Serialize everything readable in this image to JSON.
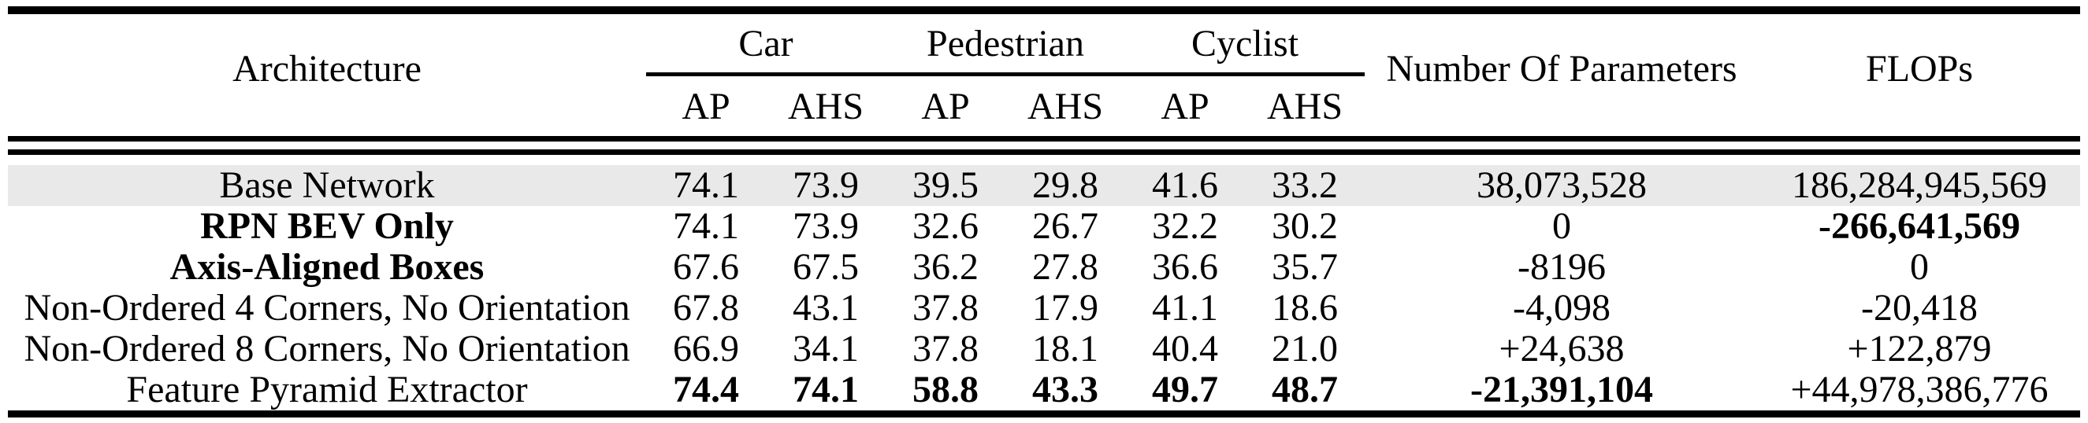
{
  "table": {
    "header": {
      "architecture": "Architecture",
      "groups": [
        {
          "label": "Car",
          "sub": [
            "AP",
            "AHS"
          ]
        },
        {
          "label": "Pedestrian",
          "sub": [
            "AP",
            "AHS"
          ]
        },
        {
          "label": "Cyclist",
          "sub": [
            "AP",
            "AHS"
          ]
        }
      ],
      "params": "Number Of Parameters",
      "flops": "FLOPs"
    },
    "rows": [
      {
        "label": {
          "text": "Base Network",
          "bold": false
        },
        "highlight": true,
        "metrics": [
          {
            "text": "74.1",
            "bold": false
          },
          {
            "text": "73.9",
            "bold": false
          },
          {
            "text": "39.5",
            "bold": false
          },
          {
            "text": "29.8",
            "bold": false
          },
          {
            "text": "41.6",
            "bold": false
          },
          {
            "text": "33.2",
            "bold": false
          }
        ],
        "params": {
          "text": "38,073,528",
          "bold": false
        },
        "flops": {
          "text": "186,284,945,569",
          "bold": false
        }
      },
      {
        "label": {
          "text": "RPN BEV Only",
          "bold": true
        },
        "highlight": false,
        "metrics": [
          {
            "text": "74.1",
            "bold": false
          },
          {
            "text": "73.9",
            "bold": false
          },
          {
            "text": "32.6",
            "bold": false
          },
          {
            "text": "26.7",
            "bold": false
          },
          {
            "text": "32.2",
            "bold": false
          },
          {
            "text": "30.2",
            "bold": false
          }
        ],
        "params": {
          "text": "0",
          "bold": false
        },
        "flops": {
          "text": "-266,641,569",
          "bold": true
        }
      },
      {
        "label": {
          "text": "Axis-Aligned Boxes",
          "bold": true
        },
        "highlight": false,
        "metrics": [
          {
            "text": "67.6",
            "bold": false
          },
          {
            "text": "67.5",
            "bold": false
          },
          {
            "text": "36.2",
            "bold": false
          },
          {
            "text": "27.8",
            "bold": false
          },
          {
            "text": "36.6",
            "bold": false
          },
          {
            "text": "35.7",
            "bold": false
          }
        ],
        "params": {
          "text": "-8196",
          "bold": false
        },
        "flops": {
          "text": "0",
          "bold": false
        }
      },
      {
        "label": {
          "text": "Non-Ordered 4 Corners, No Orientation",
          "bold": false
        },
        "highlight": false,
        "metrics": [
          {
            "text": "67.8",
            "bold": false
          },
          {
            "text": "43.1",
            "bold": false
          },
          {
            "text": "37.8",
            "bold": false
          },
          {
            "text": "17.9",
            "bold": false
          },
          {
            "text": "41.1",
            "bold": false
          },
          {
            "text": "18.6",
            "bold": false
          }
        ],
        "params": {
          "text": "-4,098",
          "bold": false
        },
        "flops": {
          "text": "-20,418",
          "bold": false
        }
      },
      {
        "label": {
          "text": "Non-Ordered 8 Corners, No Orientation",
          "bold": false
        },
        "highlight": false,
        "metrics": [
          {
            "text": "66.9",
            "bold": false
          },
          {
            "text": "34.1",
            "bold": false
          },
          {
            "text": "37.8",
            "bold": false
          },
          {
            "text": "18.1",
            "bold": false
          },
          {
            "text": "40.4",
            "bold": false
          },
          {
            "text": "21.0",
            "bold": false
          }
        ],
        "params": {
          "text": "+24,638",
          "bold": false
        },
        "flops": {
          "text": "+122,879",
          "bold": false
        }
      },
      {
        "label": {
          "text": "Feature Pyramid Extractor",
          "bold": false
        },
        "highlight": false,
        "metrics": [
          {
            "text": "74.4",
            "bold": true
          },
          {
            "text": "74.1",
            "bold": true
          },
          {
            "text": "58.8",
            "bold": true
          },
          {
            "text": "43.3",
            "bold": true
          },
          {
            "text": "49.7",
            "bold": true
          },
          {
            "text": "48.7",
            "bold": true
          }
        ],
        "params": {
          "text": "-21,391,104",
          "bold": true
        },
        "flops": {
          "text": "+44,978,386,776",
          "bold": false
        }
      }
    ]
  },
  "colors": {
    "highlight_row_bg": "#e9e9e9",
    "rule_color": "#000000",
    "page_bg": "#ffffff"
  }
}
